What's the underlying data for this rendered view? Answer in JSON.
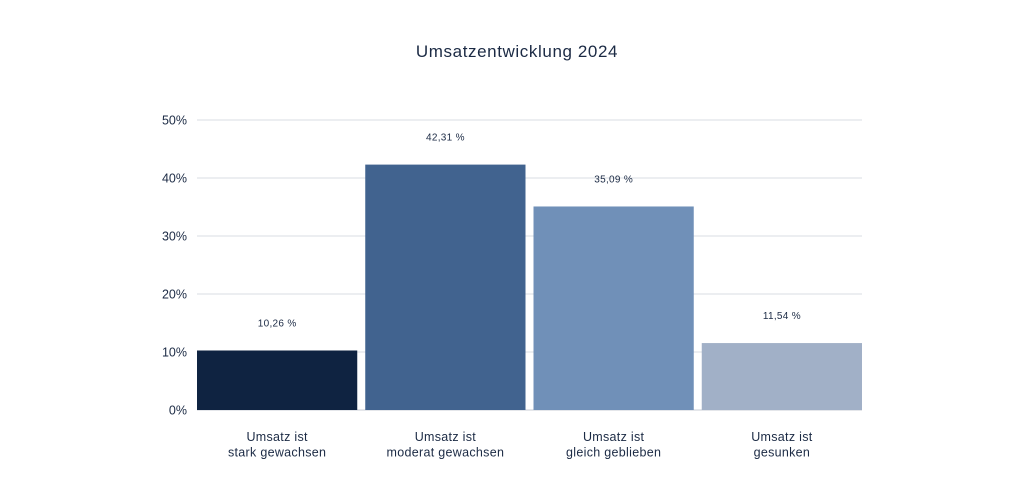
{
  "chart_data": {
    "type": "bar",
    "title": "Umsatzentwicklung 2024",
    "xlabel": "",
    "ylabel": "",
    "ylim": [
      0,
      50
    ],
    "y_ticks": [
      {
        "value": 0,
        "label": "0%"
      },
      {
        "value": 10,
        "label": "10%"
      },
      {
        "value": 20,
        "label": "20%"
      },
      {
        "value": 30,
        "label": "30%"
      },
      {
        "value": 40,
        "label": "40%"
      },
      {
        "value": 50,
        "label": "50%"
      }
    ],
    "grid": true,
    "legend": "none",
    "categories": [
      [
        "Umsatz ist",
        "stark gewachsen"
      ],
      [
        "Umsatz ist",
        "moderat gewachsen"
      ],
      [
        "Umsatz ist",
        "gleich geblieben"
      ],
      [
        "Umsatz ist",
        "gesunken"
      ]
    ],
    "values": [
      10.26,
      42.31,
      35.09,
      11.54
    ],
    "data_labels": [
      "10,26 %",
      "42,31 %",
      "35,09 %",
      "11,54 %"
    ],
    "colors": [
      "#0f2341",
      "#41638f",
      "#7090b8",
      "#a1b0c7"
    ]
  }
}
